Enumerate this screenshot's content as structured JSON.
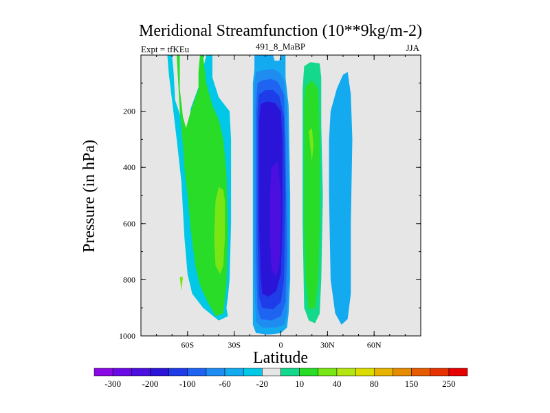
{
  "chart_data": {
    "type": "heatmap",
    "title": "Meridional Streamfunction (10**9kg/m-2)",
    "left_string": "Expt = tfKEu",
    "center_string": "491_8_MaBP",
    "right_string": "JJA",
    "xlabel": "Latitude",
    "ylabel": "Pressure (in hPa)",
    "xlim": [
      -90,
      90
    ],
    "ylim": [
      1000,
      0
    ],
    "x_ticks": [
      {
        "value": -60,
        "label": "60S"
      },
      {
        "value": -30,
        "label": "30S"
      },
      {
        "value": 0,
        "label": "0"
      },
      {
        "value": 30,
        "label": "30N"
      },
      {
        "value": 60,
        "label": "60N"
      }
    ],
    "y_ticks": [
      {
        "value": 200,
        "label": "200"
      },
      {
        "value": 400,
        "label": "400"
      },
      {
        "value": 600,
        "label": "600"
      },
      {
        "value": 800,
        "label": "800"
      },
      {
        "value": 1000,
        "label": "1000"
      }
    ],
    "missing_color": "#e6e6e6",
    "colorbar": {
      "colors": [
        "#8a0ae6",
        "#6a0ae6",
        "#4b10e0",
        "#2a14d8",
        "#1e3ce8",
        "#1e64f0",
        "#1e8cf0",
        "#14aaf0",
        "#00c8e6",
        "#e6e6e6",
        "#14d88c",
        "#28dc28",
        "#78e614",
        "#b4e614",
        "#dcdc00",
        "#e6b400",
        "#e68c00",
        "#e65a00",
        "#e63200",
        "#e60000"
      ],
      "labels": [
        {
          "after_box": 1,
          "text": "-300"
        },
        {
          "after_box": 3,
          "text": "-200"
        },
        {
          "after_box": 5,
          "text": "-100"
        },
        {
          "after_box": 7,
          "text": "-60"
        },
        {
          "after_box": 9,
          "text": "-20"
        },
        {
          "after_box": 11,
          "text": "10"
        },
        {
          "after_box": 13,
          "text": "40"
        },
        {
          "after_box": 15,
          "text": "80"
        },
        {
          "after_box": 17,
          "text": "150"
        },
        {
          "after_box": 19,
          "text": "250"
        }
      ]
    },
    "regions": [
      {
        "name": "sh-ferrel-outer",
        "color": "#00c8e6",
        "points": [
          [
            -73,
            0
          ],
          [
            -70,
            0
          ],
          [
            -69,
            60
          ],
          [
            -68,
            160
          ],
          [
            -62,
            260
          ],
          [
            -60,
            300
          ],
          [
            -58,
            190
          ],
          [
            -52,
            100
          ],
          [
            -48,
            0
          ],
          [
            -44,
            0
          ],
          [
            -44,
            80
          ],
          [
            -40,
            150
          ],
          [
            -33,
            200
          ],
          [
            -32,
            300
          ],
          [
            -32,
            600
          ],
          [
            -33,
            800
          ],
          [
            -34,
            860
          ],
          [
            -35,
            900
          ],
          [
            -34,
            930
          ],
          [
            -40,
            945
          ],
          [
            -50,
            900
          ],
          [
            -57,
            850
          ],
          [
            -60,
            780
          ],
          [
            -62,
            650
          ],
          [
            -64,
            450
          ],
          [
            -67,
            300
          ],
          [
            -70,
            160
          ],
          [
            -72,
            70
          ]
        ]
      },
      {
        "name": "sh-ferrel-mid",
        "color": "#28dc28",
        "points": [
          [
            -67,
            0
          ],
          [
            -65,
            0
          ],
          [
            -65,
            120
          ],
          [
            -63,
            220
          ],
          [
            -61,
            260
          ],
          [
            -58,
            200
          ],
          [
            -53,
            120
          ],
          [
            -53,
            60
          ],
          [
            -52,
            0
          ],
          [
            -50,
            0
          ],
          [
            -48,
            100
          ],
          [
            -44,
            180
          ],
          [
            -40,
            230
          ],
          [
            -37,
            300
          ],
          [
            -35,
            420
          ],
          [
            -34,
            620
          ],
          [
            -35,
            820
          ],
          [
            -37,
            920
          ],
          [
            -42,
            930
          ],
          [
            -47,
            880
          ],
          [
            -52,
            820
          ],
          [
            -55,
            750
          ],
          [
            -58,
            620
          ],
          [
            -60,
            500
          ],
          [
            -62,
            400
          ],
          [
            -63,
            320
          ],
          [
            -65,
            200
          ],
          [
            -66,
            100
          ]
        ]
      },
      {
        "name": "sh-ferrel-core",
        "color": "#78e614",
        "points": [
          [
            -40,
            470
          ],
          [
            -37,
            480
          ],
          [
            -36,
            520
          ],
          [
            -36,
            650
          ],
          [
            -37,
            750
          ],
          [
            -39,
            780
          ],
          [
            -42,
            750
          ],
          [
            -43,
            650
          ],
          [
            -42,
            520
          ]
        ]
      },
      {
        "name": "sh-single-lobe",
        "color": "#78e614",
        "points": [
          [
            -65,
            790
          ],
          [
            -63,
            790
          ],
          [
            -64,
            840
          ]
        ]
      },
      {
        "name": "hadley-level1",
        "color": "#14aaf0",
        "points": [
          [
            -17,
            0
          ],
          [
            -5,
            0
          ],
          [
            -4,
            20
          ],
          [
            -1,
            20
          ],
          [
            0,
            0
          ],
          [
            3,
            0
          ],
          [
            3,
            80
          ],
          [
            5,
            180
          ],
          [
            6,
            500
          ],
          [
            6,
            800
          ],
          [
            5,
            920
          ],
          [
            4,
            970
          ],
          [
            0,
            990
          ],
          [
            -8,
            995
          ],
          [
            -16,
            990
          ],
          [
            -18,
            960
          ],
          [
            -18,
            800
          ],
          [
            -18,
            500
          ],
          [
            -18,
            200
          ],
          [
            -18,
            100
          ],
          [
            -17,
            50
          ]
        ]
      },
      {
        "name": "hadley-level2",
        "color": "#1e8cf0",
        "points": [
          [
            -16,
            60
          ],
          [
            -12,
            55
          ],
          [
            -5,
            50
          ],
          [
            -1,
            60
          ],
          [
            2,
            90
          ],
          [
            4,
            180
          ],
          [
            5,
            400
          ],
          [
            5,
            800
          ],
          [
            4,
            920
          ],
          [
            2,
            960
          ],
          [
            -3,
            970
          ],
          [
            -12,
            970
          ],
          [
            -16,
            950
          ],
          [
            -17,
            800
          ],
          [
            -17,
            400
          ],
          [
            -17,
            200
          ],
          [
            -17,
            110
          ]
        ]
      },
      {
        "name": "hadley-level3",
        "color": "#1e64f0",
        "points": [
          [
            -15,
            100
          ],
          [
            -12,
            90
          ],
          [
            -6,
            85
          ],
          [
            -2,
            95
          ],
          [
            2,
            140
          ],
          [
            3,
            300
          ],
          [
            4,
            700
          ],
          [
            3,
            880
          ],
          [
            0,
            930
          ],
          [
            -6,
            945
          ],
          [
            -13,
            940
          ],
          [
            -15,
            900
          ],
          [
            -16,
            700
          ],
          [
            -16,
            400
          ],
          [
            -16,
            200
          ]
        ]
      },
      {
        "name": "hadley-level4",
        "color": "#1e3ce8",
        "points": [
          [
            -14,
            140
          ],
          [
            -10,
            125
          ],
          [
            -5,
            125
          ],
          [
            -1,
            145
          ],
          [
            2,
            220
          ],
          [
            3,
            500
          ],
          [
            2,
            800
          ],
          [
            0,
            880
          ],
          [
            -5,
            905
          ],
          [
            -12,
            900
          ],
          [
            -14,
            860
          ],
          [
            -15,
            650
          ],
          [
            -15,
            350
          ],
          [
            -15,
            200
          ]
        ]
      },
      {
        "name": "hadley-level5",
        "color": "#2a14d8",
        "points": [
          [
            -13,
            175
          ],
          [
            -9,
            165
          ],
          [
            -4,
            170
          ],
          [
            0,
            200
          ],
          [
            1,
            300
          ],
          [
            1,
            600
          ],
          [
            0,
            780
          ],
          [
            -3,
            840
          ],
          [
            -8,
            860
          ],
          [
            -12,
            850
          ],
          [
            -13,
            780
          ],
          [
            -14,
            600
          ],
          [
            -14,
            350
          ],
          [
            -14,
            240
          ]
        ]
      },
      {
        "name": "hadley-level6",
        "color": "#4b10e0",
        "points": [
          [
            -6,
            400
          ],
          [
            -2,
            380
          ],
          [
            0,
            500
          ],
          [
            0,
            650
          ],
          [
            -1,
            750
          ],
          [
            -3,
            790
          ],
          [
            -6,
            760
          ],
          [
            -7,
            650
          ],
          [
            -7,
            500
          ]
        ]
      },
      {
        "name": "nh-cell-outer",
        "color": "#14d88c",
        "points": [
          [
            15,
            40
          ],
          [
            19,
            25
          ],
          [
            25,
            30
          ],
          [
            26,
            80
          ],
          [
            26,
            250
          ],
          [
            27,
            500
          ],
          [
            26,
            800
          ],
          [
            25,
            920
          ],
          [
            22,
            955
          ],
          [
            18,
            945
          ],
          [
            15,
            900
          ],
          [
            14,
            600
          ],
          [
            14,
            300
          ],
          [
            14,
            120
          ]
        ]
      },
      {
        "name": "nh-cell-mid",
        "color": "#28dc28",
        "points": [
          [
            16,
            110
          ],
          [
            20,
            90
          ],
          [
            24,
            120
          ],
          [
            25,
            300
          ],
          [
            25,
            600
          ],
          [
            24,
            800
          ],
          [
            22,
            900
          ],
          [
            18,
            905
          ],
          [
            16,
            800
          ],
          [
            15,
            600
          ],
          [
            15,
            300
          ],
          [
            15,
            170
          ]
        ]
      },
      {
        "name": "nh-cell-core",
        "color": "#78e614",
        "points": [
          [
            18,
            270
          ],
          [
            20,
            260
          ],
          [
            21,
            320
          ],
          [
            20,
            380
          ],
          [
            19,
            330
          ]
        ]
      },
      {
        "name": "nh-ferrel",
        "color": "#14aaf0",
        "points": [
          [
            32,
            200
          ],
          [
            36,
            120
          ],
          [
            40,
            70
          ],
          [
            43,
            60
          ],
          [
            45,
            140
          ],
          [
            46,
            300
          ],
          [
            45,
            600
          ],
          [
            45,
            850
          ],
          [
            43,
            940
          ],
          [
            39,
            960
          ],
          [
            35,
            920
          ],
          [
            32,
            800
          ],
          [
            31,
            500
          ],
          [
            31,
            300
          ]
        ]
      }
    ]
  }
}
